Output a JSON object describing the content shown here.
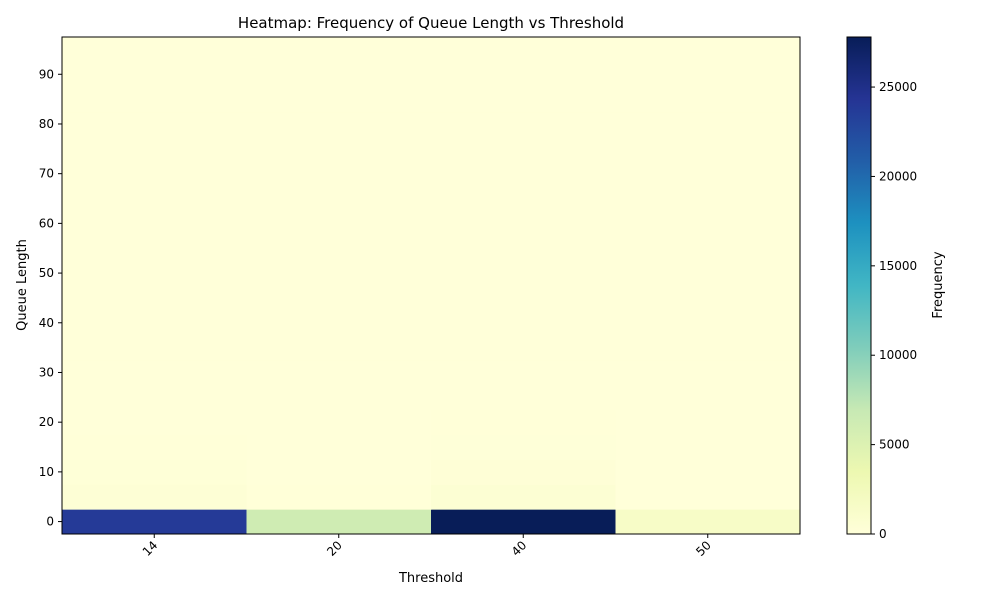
{
  "chart_data": {
    "type": "heatmap",
    "title": "Heatmap: Frequency of Queue Length vs Threshold",
    "xlabel": "Threshold",
    "ylabel": "Queue Length",
    "colorbar_label": "Frequency",
    "x_categories": [
      "14",
      "20",
      "40",
      "50"
    ],
    "y_ticks": [
      0,
      10,
      20,
      30,
      40,
      50,
      60,
      70,
      80,
      90
    ],
    "ylim": [
      -2.5,
      97.5
    ],
    "colorbar_range": [
      0,
      27800
    ],
    "colorbar_ticks": [
      0,
      5000,
      10000,
      15000,
      20000,
      25000
    ],
    "colormap": "YlGnBu",
    "rows": [
      {
        "queue_length": 0,
        "values": [
          23800,
          6200,
          27800,
          1600
        ]
      },
      {
        "queue_length": 5,
        "values": [
          380,
          90,
          520,
          40
        ]
      },
      {
        "queue_length": 10,
        "values": [
          150,
          30,
          260,
          10
        ]
      },
      {
        "queue_length": 15,
        "values": [
          60,
          10,
          120,
          5
        ]
      },
      {
        "queue_length": 20,
        "values": [
          20,
          0,
          50,
          0
        ]
      },
      {
        "queue_length": 25,
        "values": [
          10,
          0,
          20,
          0
        ]
      },
      {
        "queue_length": 30,
        "values": [
          0,
          0,
          10,
          0
        ]
      },
      {
        "queue_length": 35,
        "values": [
          0,
          0,
          0,
          0
        ]
      },
      {
        "queue_length": 40,
        "values": [
          0,
          0,
          0,
          0
        ]
      },
      {
        "queue_length": 45,
        "values": [
          0,
          0,
          0,
          0
        ]
      },
      {
        "queue_length": 50,
        "values": [
          0,
          0,
          0,
          0
        ]
      },
      {
        "queue_length": 55,
        "values": [
          0,
          0,
          0,
          0
        ]
      },
      {
        "queue_length": 60,
        "values": [
          0,
          0,
          0,
          0
        ]
      },
      {
        "queue_length": 65,
        "values": [
          0,
          0,
          0,
          0
        ]
      },
      {
        "queue_length": 70,
        "values": [
          0,
          0,
          0,
          0
        ]
      },
      {
        "queue_length": 75,
        "values": [
          0,
          0,
          0,
          0
        ]
      },
      {
        "queue_length": 80,
        "values": [
          0,
          0,
          0,
          0
        ]
      },
      {
        "queue_length": 85,
        "values": [
          0,
          0,
          0,
          0
        ]
      },
      {
        "queue_length": 90,
        "values": [
          0,
          0,
          0,
          0
        ]
      },
      {
        "queue_length": 95,
        "values": [
          0,
          0,
          0,
          0
        ]
      }
    ]
  }
}
